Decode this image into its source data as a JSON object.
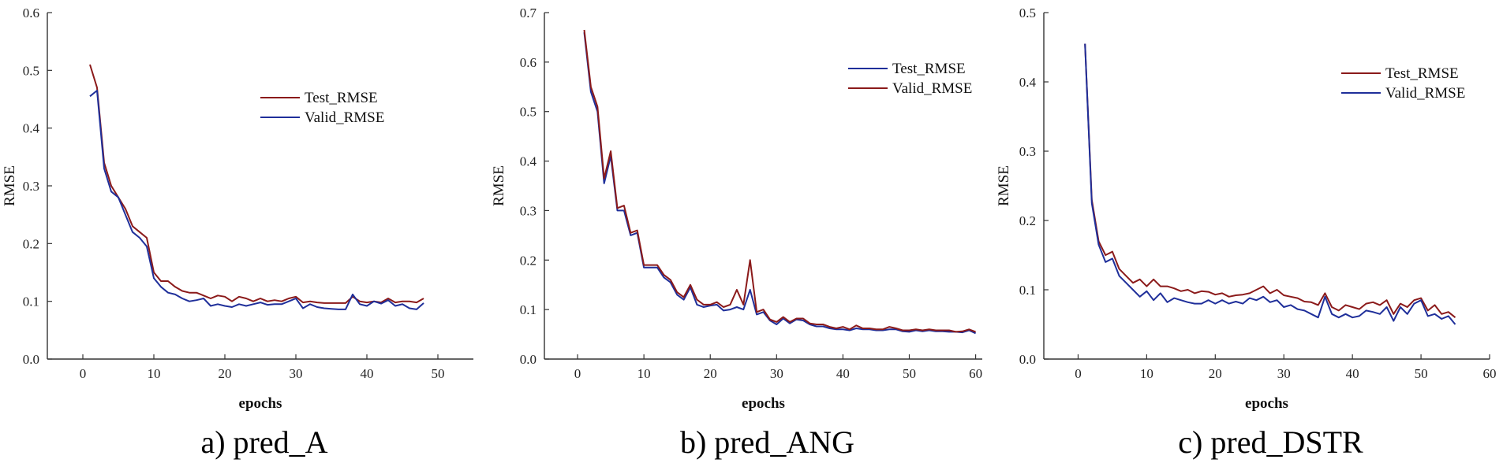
{
  "colors": {
    "test": "#8b1a1a",
    "valid": "#1f2f9a",
    "axis": "#333333"
  },
  "chart_data": [
    {
      "type": "line",
      "caption": "a) pred_A",
      "xlabel": "epochs",
      "ylabel": "RMSE",
      "xlim": [
        -5,
        55
      ],
      "ylim": [
        0,
        0.6
      ],
      "xticks": [
        0,
        10,
        20,
        30,
        40,
        50
      ],
      "yticks": [
        0.0,
        0.1,
        0.2,
        0.3,
        0.4,
        0.5,
        0.6
      ],
      "ytick_labels": [
        "0.0",
        "0.1",
        "0.2",
        "0.3",
        "0.4",
        "0.5",
        "0.6"
      ],
      "legend_position": "upper-middle",
      "series": [
        {
          "name": "Test_RMSE",
          "color_key": "test",
          "x": [
            1,
            2,
            3,
            4,
            5,
            6,
            7,
            8,
            9,
            10,
            11,
            12,
            13,
            14,
            15,
            16,
            17,
            18,
            19,
            20,
            21,
            22,
            23,
            24,
            25,
            26,
            27,
            28,
            29,
            30,
            31,
            32,
            33,
            34,
            35,
            36,
            37,
            38,
            39,
            40,
            41,
            42,
            43,
            44,
            45,
            46,
            47,
            48
          ],
          "values": [
            0.51,
            0.47,
            0.34,
            0.3,
            0.28,
            0.26,
            0.23,
            0.22,
            0.21,
            0.15,
            0.135,
            0.135,
            0.125,
            0.118,
            0.115,
            0.115,
            0.11,
            0.105,
            0.11,
            0.108,
            0.1,
            0.108,
            0.105,
            0.1,
            0.105,
            0.1,
            0.102,
            0.1,
            0.105,
            0.108,
            0.098,
            0.1,
            0.098,
            0.097,
            0.097,
            0.097,
            0.097,
            0.108,
            0.1,
            0.098,
            0.1,
            0.098,
            0.105,
            0.098,
            0.1,
            0.1,
            0.098,
            0.105
          ]
        },
        {
          "name": "Valid_RMSE",
          "color_key": "valid",
          "x": [
            1,
            2,
            3,
            4,
            5,
            6,
            7,
            8,
            9,
            10,
            11,
            12,
            13,
            14,
            15,
            16,
            17,
            18,
            19,
            20,
            21,
            22,
            23,
            24,
            25,
            26,
            27,
            28,
            29,
            30,
            31,
            32,
            33,
            34,
            35,
            36,
            37,
            38,
            39,
            40,
            41,
            42,
            43,
            44,
            45,
            46,
            47,
            48
          ],
          "values": [
            0.455,
            0.465,
            0.33,
            0.29,
            0.28,
            0.25,
            0.22,
            0.21,
            0.195,
            0.14,
            0.125,
            0.115,
            0.112,
            0.105,
            0.1,
            0.102,
            0.105,
            0.092,
            0.095,
            0.092,
            0.09,
            0.095,
            0.092,
            0.095,
            0.098,
            0.094,
            0.095,
            0.095,
            0.1,
            0.105,
            0.088,
            0.095,
            0.09,
            0.088,
            0.087,
            0.086,
            0.086,
            0.112,
            0.095,
            0.092,
            0.1,
            0.096,
            0.102,
            0.092,
            0.095,
            0.088,
            0.086,
            0.097
          ]
        }
      ]
    },
    {
      "type": "line",
      "caption": "b) pred_ANG",
      "xlabel": "epochs",
      "ylabel": "RMSE",
      "xlim": [
        -5,
        61
      ],
      "ylim": [
        0,
        0.7
      ],
      "xticks": [
        0,
        10,
        20,
        30,
        40,
        50,
        60
      ],
      "yticks": [
        0.0,
        0.1,
        0.2,
        0.3,
        0.4,
        0.5,
        0.6,
        0.7
      ],
      "ytick_labels": [
        "0.0",
        "0.1",
        "0.2",
        "0.3",
        "0.4",
        "0.5",
        "0.6",
        "0.7"
      ],
      "legend_position": "upper-right",
      "series": [
        {
          "name": "Test_RMSE",
          "color_key": "valid",
          "x": [
            1,
            2,
            3,
            4,
            5,
            6,
            7,
            8,
            9,
            10,
            11,
            12,
            13,
            14,
            15,
            16,
            17,
            18,
            19,
            20,
            21,
            22,
            23,
            24,
            25,
            26,
            27,
            28,
            29,
            30,
            31,
            32,
            33,
            34,
            35,
            36,
            37,
            38,
            39,
            40,
            41,
            42,
            43,
            44,
            45,
            46,
            47,
            48,
            49,
            50,
            51,
            52,
            53,
            54,
            55,
            56,
            57,
            58,
            59,
            60
          ],
          "values": [
            0.66,
            0.54,
            0.5,
            0.355,
            0.41,
            0.3,
            0.3,
            0.25,
            0.255,
            0.185,
            0.185,
            0.185,
            0.165,
            0.155,
            0.13,
            0.12,
            0.145,
            0.11,
            0.105,
            0.108,
            0.11,
            0.098,
            0.1,
            0.105,
            0.1,
            0.14,
            0.09,
            0.095,
            0.078,
            0.07,
            0.082,
            0.072,
            0.08,
            0.078,
            0.07,
            0.066,
            0.066,
            0.062,
            0.06,
            0.06,
            0.058,
            0.062,
            0.06,
            0.06,
            0.058,
            0.058,
            0.06,
            0.06,
            0.056,
            0.055,
            0.058,
            0.056,
            0.058,
            0.056,
            0.056,
            0.055,
            0.055,
            0.054,
            0.058,
            0.052
          ]
        },
        {
          "name": "Valid_RMSE",
          "color_key": "test",
          "x": [
            1,
            2,
            3,
            4,
            5,
            6,
            7,
            8,
            9,
            10,
            11,
            12,
            13,
            14,
            15,
            16,
            17,
            18,
            19,
            20,
            21,
            22,
            23,
            24,
            25,
            26,
            27,
            28,
            29,
            30,
            31,
            32,
            33,
            34,
            35,
            36,
            37,
            38,
            39,
            40,
            41,
            42,
            43,
            44,
            45,
            46,
            47,
            48,
            49,
            50,
            51,
            52,
            53,
            54,
            55,
            56,
            57,
            58,
            59,
            60
          ],
          "values": [
            0.665,
            0.55,
            0.51,
            0.365,
            0.42,
            0.305,
            0.31,
            0.255,
            0.26,
            0.19,
            0.19,
            0.19,
            0.17,
            0.16,
            0.135,
            0.125,
            0.15,
            0.12,
            0.11,
            0.11,
            0.115,
            0.105,
            0.11,
            0.14,
            0.11,
            0.2,
            0.095,
            0.1,
            0.08,
            0.075,
            0.085,
            0.075,
            0.082,
            0.082,
            0.072,
            0.07,
            0.07,
            0.065,
            0.062,
            0.065,
            0.06,
            0.068,
            0.062,
            0.062,
            0.06,
            0.06,
            0.065,
            0.062,
            0.058,
            0.058,
            0.06,
            0.058,
            0.06,
            0.058,
            0.058,
            0.058,
            0.055,
            0.056,
            0.06,
            0.055
          ]
        }
      ]
    },
    {
      "type": "line",
      "caption": "c) pred_DSTR",
      "xlabel": "epochs",
      "ylabel": "RMSE",
      "xlim": [
        -5,
        60
      ],
      "ylim": [
        0,
        0.5
      ],
      "xticks": [
        0,
        10,
        20,
        30,
        40,
        50,
        60
      ],
      "yticks": [
        0.0,
        0.1,
        0.2,
        0.3,
        0.4,
        0.5
      ],
      "ytick_labels": [
        "0.0",
        "0.1",
        "0.2",
        "0.3",
        "0.4",
        "0.5"
      ],
      "legend_position": "upper-right",
      "series": [
        {
          "name": "Test_RMSE",
          "color_key": "test",
          "x": [
            1,
            2,
            3,
            4,
            5,
            6,
            7,
            8,
            9,
            10,
            11,
            12,
            13,
            14,
            15,
            16,
            17,
            18,
            19,
            20,
            21,
            22,
            23,
            24,
            25,
            26,
            27,
            28,
            29,
            30,
            31,
            32,
            33,
            34,
            35,
            36,
            37,
            38,
            39,
            40,
            41,
            42,
            43,
            44,
            45,
            46,
            47,
            48,
            49,
            50,
            51,
            52,
            53,
            54,
            55
          ],
          "values": [
            0.455,
            0.23,
            0.17,
            0.15,
            0.155,
            0.13,
            0.12,
            0.11,
            0.115,
            0.105,
            0.115,
            0.105,
            0.105,
            0.102,
            0.098,
            0.1,
            0.095,
            0.098,
            0.097,
            0.093,
            0.095,
            0.09,
            0.092,
            0.093,
            0.095,
            0.1,
            0.105,
            0.095,
            0.1,
            0.092,
            0.09,
            0.088,
            0.083,
            0.082,
            0.078,
            0.095,
            0.075,
            0.07,
            0.078,
            0.075,
            0.072,
            0.08,
            0.082,
            0.078,
            0.085,
            0.065,
            0.08,
            0.075,
            0.085,
            0.088,
            0.07,
            0.078,
            0.065,
            0.068,
            0.06
          ]
        },
        {
          "name": "Valid_RMSE",
          "color_key": "valid",
          "x": [
            1,
            2,
            3,
            4,
            5,
            6,
            7,
            8,
            9,
            10,
            11,
            12,
            13,
            14,
            15,
            16,
            17,
            18,
            19,
            20,
            21,
            22,
            23,
            24,
            25,
            26,
            27,
            28,
            29,
            30,
            31,
            32,
            33,
            34,
            35,
            36,
            37,
            38,
            39,
            40,
            41,
            42,
            43,
            44,
            45,
            46,
            47,
            48,
            49,
            50,
            51,
            52,
            53,
            54,
            55
          ],
          "values": [
            0.455,
            0.225,
            0.165,
            0.14,
            0.145,
            0.12,
            0.11,
            0.1,
            0.09,
            0.098,
            0.085,
            0.095,
            0.082,
            0.088,
            0.085,
            0.082,
            0.08,
            0.08,
            0.085,
            0.08,
            0.085,
            0.08,
            0.083,
            0.08,
            0.088,
            0.085,
            0.09,
            0.082,
            0.085,
            0.075,
            0.078,
            0.072,
            0.07,
            0.065,
            0.06,
            0.09,
            0.065,
            0.06,
            0.065,
            0.06,
            0.062,
            0.07,
            0.068,
            0.065,
            0.075,
            0.055,
            0.075,
            0.065,
            0.08,
            0.085,
            0.062,
            0.065,
            0.058,
            0.062,
            0.05
          ]
        }
      ]
    }
  ]
}
